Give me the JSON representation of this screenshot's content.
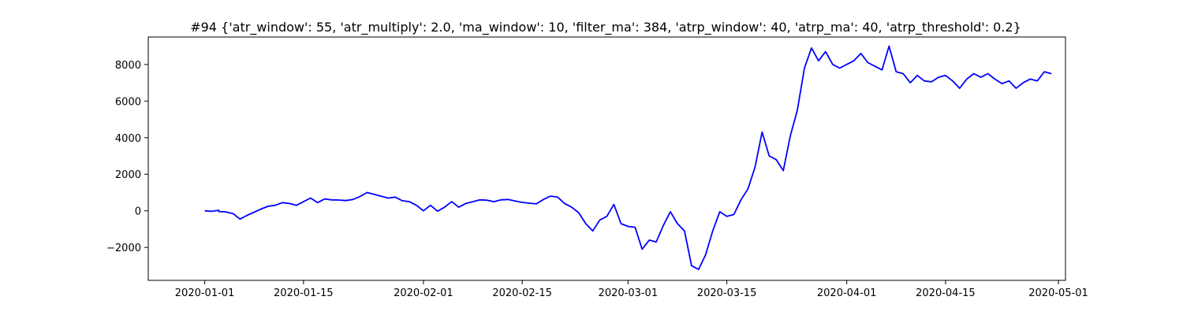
{
  "chart_data": {
    "type": "line",
    "title": "#94 {'atr_window': 55, 'atr_multiply': 2.0, 'ma_window': 10, 'filter_ma': 384, 'atrp_window': 40, 'atrp_ma': 40, 'atrp_threshold': 0.2}",
    "xlabel": "",
    "ylabel": "",
    "grid": false,
    "legend": "none",
    "xlim": [
      "2019-12-24",
      "2020-05-02"
    ],
    "ylim": [
      -3800,
      9500
    ],
    "x_ticks": [
      "2020-01-01",
      "2020-01-15",
      "2020-02-01",
      "2020-02-15",
      "2020-03-01",
      "2020-03-15",
      "2020-04-01",
      "2020-04-15",
      "2020-05-01"
    ],
    "y_ticks": [
      -2000,
      0,
      2000,
      4000,
      6000,
      8000
    ],
    "y_tick_labels": [
      "−2000",
      "0",
      "2000",
      "4000",
      "6000",
      "8000"
    ],
    "color": "#0000ff",
    "series": [
      {
        "x": [
          "2020-01-01",
          "2020-01-02",
          "2020-01-03",
          "2020-01-03",
          "2020-01-04",
          "2020-01-05",
          "2020-01-06",
          "2020-01-07",
          "2020-01-09",
          "2020-01-10",
          "2020-01-11",
          "2020-01-12",
          "2020-01-13",
          "2020-01-14",
          "2020-01-15",
          "2020-01-16",
          "2020-01-17",
          "2020-01-18",
          "2020-01-19",
          "2020-01-20",
          "2020-01-21",
          "2020-01-22",
          "2020-01-23",
          "2020-01-24",
          "2020-01-25",
          "2020-01-26",
          "2020-01-27",
          "2020-01-28",
          "2020-01-29",
          "2020-01-30",
          "2020-01-31",
          "2020-02-01",
          "2020-02-02",
          "2020-02-03",
          "2020-02-04",
          "2020-02-05",
          "2020-02-06",
          "2020-02-07",
          "2020-02-08",
          "2020-02-09",
          "2020-02-10",
          "2020-02-11",
          "2020-02-12",
          "2020-02-13",
          "2020-02-14",
          "2020-02-15",
          "2020-02-16",
          "2020-02-17",
          "2020-02-18",
          "2020-02-19",
          "2020-02-20",
          "2020-02-21",
          "2020-02-22",
          "2020-02-23",
          "2020-02-24",
          "2020-02-25",
          "2020-02-26",
          "2020-02-27",
          "2020-02-28",
          "2020-02-29",
          "2020-03-01",
          "2020-03-02",
          "2020-03-03",
          "2020-03-04",
          "2020-03-05",
          "2020-03-06",
          "2020-03-07",
          "2020-03-08",
          "2020-03-09",
          "2020-03-10",
          "2020-03-11",
          "2020-03-12",
          "2020-03-13",
          "2020-03-14",
          "2020-03-15",
          "2020-03-16",
          "2020-03-17",
          "2020-03-18",
          "2020-03-19",
          "2020-03-20",
          "2020-03-21",
          "2020-03-22",
          "2020-03-23",
          "2020-03-24",
          "2020-03-25",
          "2020-03-26",
          "2020-03-27",
          "2020-03-28",
          "2020-03-29",
          "2020-03-30",
          "2020-03-31",
          "2020-04-01",
          "2020-04-02",
          "2020-04-03",
          "2020-04-04",
          "2020-04-05",
          "2020-04-06",
          "2020-04-07",
          "2020-04-08",
          "2020-04-09",
          "2020-04-10",
          "2020-04-11",
          "2020-04-12",
          "2020-04-13",
          "2020-04-14",
          "2020-04-15",
          "2020-04-16",
          "2020-04-17",
          "2020-04-18",
          "2020-04-19",
          "2020-04-20",
          "2020-04-21",
          "2020-04-22",
          "2020-04-23",
          "2020-04-24",
          "2020-04-25",
          "2020-04-26",
          "2020-04-27",
          "2020-04-28",
          "2020-04-29",
          "2020-04-30"
        ],
        "y": [
          0,
          -30,
          30,
          -40,
          -60,
          -150,
          -450,
          -250,
          100,
          250,
          300,
          450,
          400,
          300,
          500,
          700,
          450,
          650,
          600,
          590,
          560,
          620,
          780,
          1000,
          900,
          800,
          700,
          750,
          550,
          500,
          300,
          0,
          300,
          -20,
          200,
          500,
          200,
          400,
          500,
          600,
          580,
          500,
          600,
          620,
          540,
          460,
          420,
          380,
          620,
          800,
          760,
          400,
          200,
          -100,
          -700,
          -1100,
          -500,
          -300,
          350,
          -700,
          -850,
          -900,
          -2100,
          -1600,
          -1700,
          -800,
          -50,
          -700,
          -1100,
          -3000,
          -3200,
          -2400,
          -1100,
          -50,
          -300,
          -200,
          600,
          1200,
          2400,
          4300,
          3000,
          2800,
          2200,
          4100,
          5500,
          7800,
          8900,
          8200,
          8700,
          8000,
          7800,
          8000,
          8200,
          8600,
          8100,
          7900,
          7700,
          9000,
          7600,
          7500,
          7000,
          7400,
          7100,
          7050,
          7300,
          7400,
          7100,
          6700,
          7200,
          7500,
          7300,
          7500,
          7200,
          6950,
          7100,
          6700,
          7000,
          7200,
          7100,
          7600,
          7500
        ],
        "values_note": ""
      }
    ]
  }
}
